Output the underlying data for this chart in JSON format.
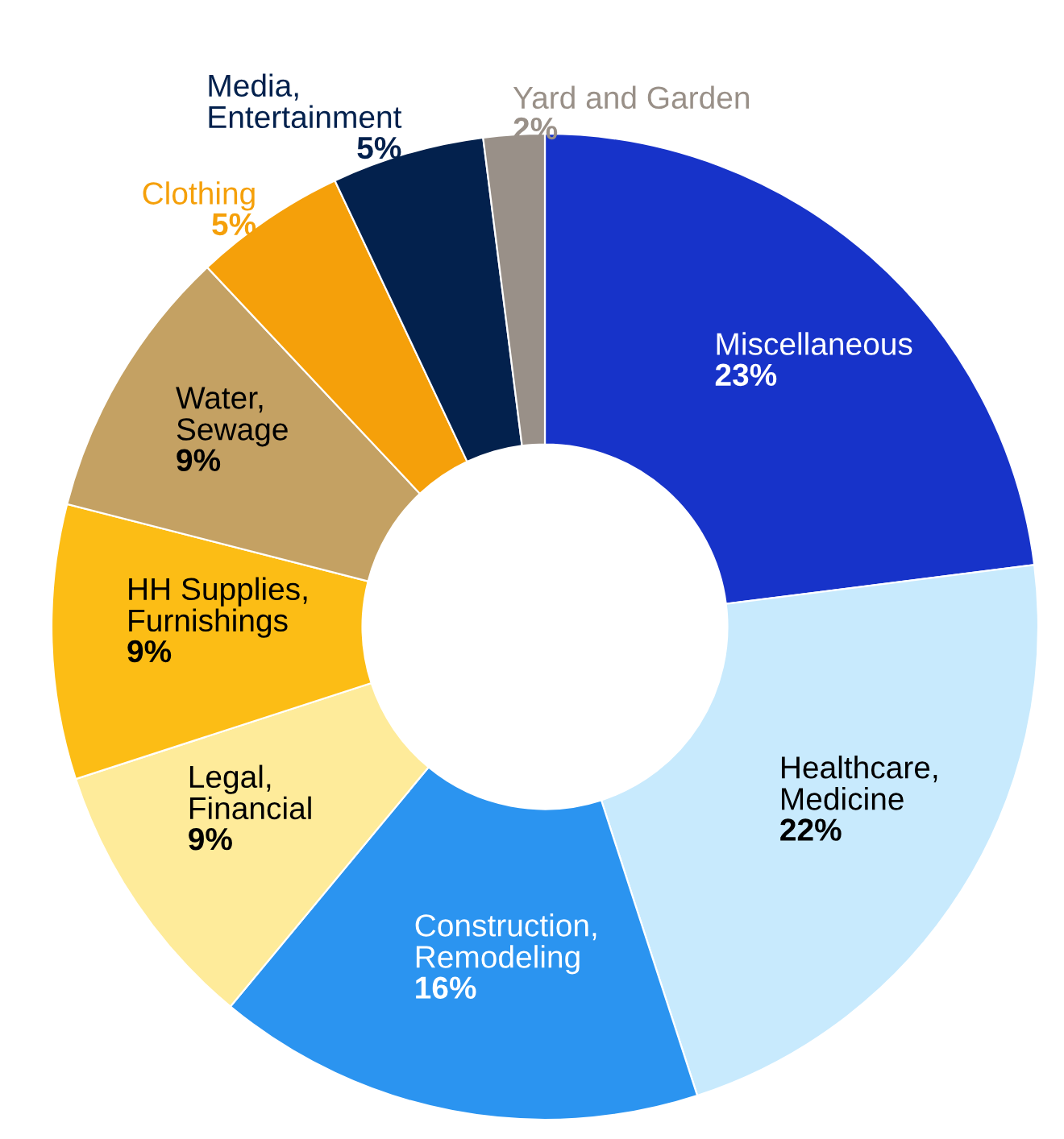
{
  "chart_data": {
    "type": "donut",
    "categories": [
      "Miscellaneous",
      "Healthcare,\nMedicine",
      "Construction,\nRemodeling",
      "Legal,\nFinancial",
      "HH Supplies,\nFurnishings",
      "Water,\nSewage",
      "Clothing",
      "Media,\nEntertainment",
      "Yard and Garden"
    ],
    "values": [
      23,
      22,
      16,
      9,
      9,
      9,
      5,
      5,
      2
    ],
    "value_labels": [
      "23%",
      "22%",
      "16%",
      "9%",
      "9%",
      "9%",
      "5%",
      "5%",
      "2%"
    ],
    "colors": [
      "#1733c9",
      "#c8eafd",
      "#2b94f0",
      "#feeb9a",
      "#fcbd15",
      "#c4a163",
      "#f5a00a",
      "#03214d",
      "#999088"
    ]
  }
}
